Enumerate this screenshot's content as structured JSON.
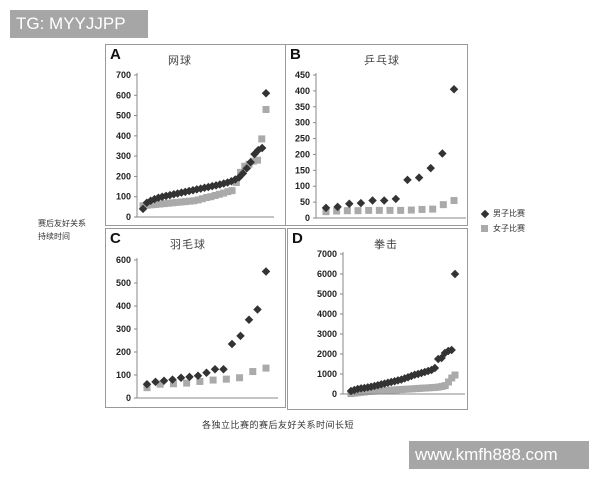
{
  "watermarks": {
    "top": "TG: MYYJJPP",
    "bottom": "www.kmfh888.com"
  },
  "y_axis_label": {
    "line1": "赛后友好关系",
    "line2": "持续时间"
  },
  "x_axis_caption": "各独立比赛的赛后友好关系时间长短",
  "legend": {
    "men": "男子比赛",
    "women": "女子比赛"
  },
  "colors": {
    "men": "#333333",
    "women": "#aaaaaa",
    "axis": "#888888",
    "panel_border": "#9a9a9a",
    "watermark_bg": "#a6a6a6"
  },
  "panels": {
    "A": {
      "letter": "A",
      "title": "网球"
    },
    "B": {
      "letter": "B",
      "title": "乒乓球"
    },
    "C": {
      "letter": "C",
      "title": "羽毛球"
    },
    "D": {
      "letter": "D",
      "title": "拳击"
    }
  },
  "chart_data": [
    {
      "id": "A",
      "type": "scatter",
      "title": "网球",
      "xlabel": "各独立比赛的赛后友好关系时间长短",
      "ylabel": "赛后友好关系持续时间",
      "ylim": [
        0,
        700
      ],
      "yticks": [
        0,
        100,
        200,
        300,
        400,
        500,
        600,
        700
      ],
      "grid": false,
      "legend_position": "right",
      "series": [
        {
          "name": "男子比赛",
          "marker": "diamond",
          "color": "#333333",
          "values": [
            40,
            70,
            80,
            88,
            95,
            100,
            104,
            108,
            112,
            116,
            120,
            124,
            128,
            132,
            136,
            140,
            144,
            148,
            152,
            156,
            160,
            165,
            170,
            176,
            185,
            195,
            215,
            240,
            270,
            310,
            330,
            340,
            610
          ]
        },
        {
          "name": "女子比赛",
          "marker": "square",
          "color": "#aaaaaa",
          "values": [
            55,
            58,
            60,
            62,
            64,
            66,
            68,
            70,
            72,
            74,
            76,
            78,
            80,
            84,
            90,
            96,
            100,
            106,
            112,
            118,
            125,
            130,
            170,
            220,
            250,
            260,
            275,
            280,
            385,
            530
          ]
        }
      ]
    },
    {
      "id": "B",
      "type": "scatter",
      "title": "乒乓球",
      "ylim": [
        0,
        450
      ],
      "yticks": [
        0,
        50,
        100,
        150,
        200,
        250,
        300,
        350,
        400,
        450
      ],
      "grid": false,
      "series": [
        {
          "name": "男子比赛",
          "marker": "diamond",
          "color": "#333333",
          "values": [
            32,
            35,
            45,
            47,
            55,
            55,
            60,
            120,
            127,
            157,
            203,
            405
          ]
        },
        {
          "name": "女子比赛",
          "marker": "square",
          "color": "#aaaaaa",
          "values": [
            20,
            22,
            23,
            23,
            24,
            24,
            24,
            24,
            25,
            27,
            28,
            42,
            55
          ]
        }
      ]
    },
    {
      "id": "C",
      "type": "scatter",
      "title": "羽毛球",
      "ylim": [
        0,
        600
      ],
      "yticks": [
        0,
        100,
        200,
        300,
        400,
        500,
        600
      ],
      "grid": false,
      "series": [
        {
          "name": "男子比赛",
          "marker": "diamond",
          "color": "#333333",
          "values": [
            60,
            70,
            75,
            80,
            88,
            92,
            97,
            110,
            125,
            125,
            235,
            270,
            340,
            385,
            550
          ]
        },
        {
          "name": "女子比赛",
          "marker": "square",
          "color": "#aaaaaa",
          "values": [
            45,
            60,
            62,
            65,
            72,
            78,
            82,
            88,
            115,
            130
          ]
        }
      ]
    },
    {
      "id": "D",
      "type": "scatter",
      "title": "拳击",
      "ylim": [
        0,
        7000
      ],
      "yticks": [
        0,
        1000,
        2000,
        3000,
        4000,
        5000,
        6000,
        7000
      ],
      "grid": false,
      "series": [
        {
          "name": "男子比赛",
          "marker": "diamond",
          "color": "#333333",
          "values": [
            150,
            200,
            250,
            280,
            300,
            330,
            360,
            400,
            440,
            480,
            520,
            560,
            600,
            640,
            680,
            720,
            780,
            840,
            900,
            960,
            1000,
            1050,
            1100,
            1150,
            1200,
            1300,
            1750,
            1800,
            2050,
            2150,
            2200,
            6000
          ]
        },
        {
          "name": "女子比赛",
          "marker": "square",
          "color": "#aaaaaa",
          "values": [
            20,
            40,
            60,
            80,
            100,
            120,
            130,
            140,
            150,
            160,
            170,
            180,
            190,
            200,
            210,
            220,
            230,
            240,
            250,
            260,
            270,
            280,
            290,
            300,
            310,
            320,
            330,
            350,
            380,
            420,
            600,
            800,
            950
          ]
        }
      ]
    }
  ]
}
